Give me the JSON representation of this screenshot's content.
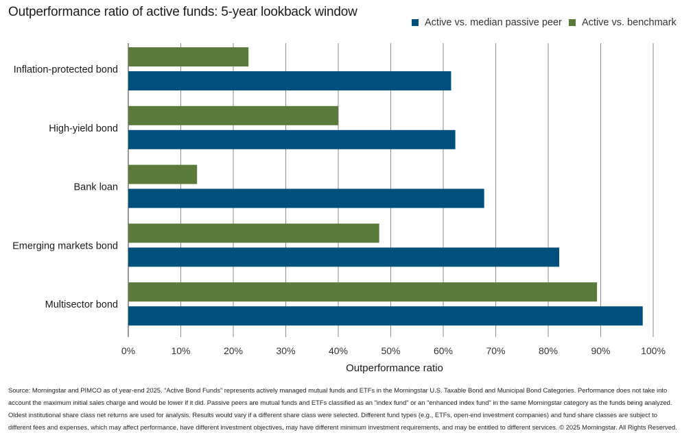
{
  "page": {
    "title": "Outperformance ratio of active funds: 5-year lookback window",
    "footnote": "Source: Morningstar and PIMCO as of year-end 2025. “Active Bond Funds” represents actively managed mutual funds and ETFs in the Morningstar U.S. Taxable Bond and Municipal Bond Categories. Performance does not take into account the maximum initial sales charge and would be lower if it did. Passive peers are mutual funds and ETFs classified as an \"index fund\" or an \"enhanced index fund\" in the same Morningstar category as the funds being analyzed. Oldest institutional share class net returns are used for analysis. Results would vary if a different share class were selected. Different fund types (e.g., ETFs, open-end investment companies) and fund share classes are subject to different fees and expenses, which may affect performance, have different investment objectives, may have different minimum investment requirements, and may be entitled to different services. © 2025 Morningstar. All Rights Reserved."
  },
  "chart_data": {
    "type": "bar",
    "orientation": "horizontal",
    "title": "Outperformance ratio of active funds: 5-year lookback window",
    "xlabel": "Outperformance ratio",
    "ylabel": "",
    "xlim": [
      0,
      100
    ],
    "x_ticks": [
      "0%",
      "10%",
      "20%",
      "30%",
      "40%",
      "50%",
      "60%",
      "70%",
      "80%",
      "90%",
      "100%"
    ],
    "grid": "vertical",
    "legend_position": "top-right",
    "categories": [
      "Inflation-protected bond",
      "High-yield bond",
      "Bank loan",
      "Emerging markets bond",
      "Multisector bond"
    ],
    "series": [
      {
        "name": "Active vs. median passive peer",
        "color": "#00507e",
        "values": [
          61.5,
          62.3,
          67.8,
          82.1,
          98.0
        ]
      },
      {
        "name": "Active vs. benchmark",
        "color": "#5a7a3b",
        "values": [
          22.9,
          40.0,
          13.1,
          47.8,
          89.3
        ]
      }
    ]
  }
}
